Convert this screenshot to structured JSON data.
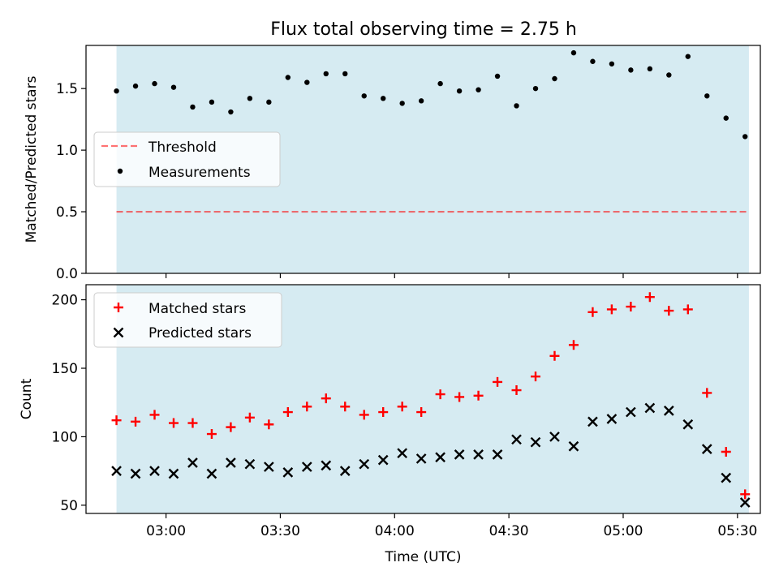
{
  "title": "Flux total observing time = 2.75 h",
  "colors": {
    "span": "#add8e6",
    "threshold": "#ff0000",
    "measurement": "#000000",
    "matched": "#ff0000",
    "predicted": "#000000"
  },
  "chart_data": [
    {
      "type": "scatter",
      "panel": "top",
      "ylabel": "Matched/Predicted stars",
      "ylim": [
        0,
        1.85
      ],
      "y_ticks": [
        "0.0",
        "0.5",
        "1.0",
        "1.5"
      ],
      "legend_placement": "center-left",
      "threshold": {
        "name": "Threshold",
        "value": 0.5,
        "style": "dashed"
      },
      "span": [
        "02:47",
        "05:33"
      ],
      "series": [
        {
          "name": "Measurements",
          "marker": "dot",
          "x": [
            "02:47",
            "02:52",
            "02:57",
            "03:02",
            "03:07",
            "03:12",
            "03:17",
            "03:22",
            "03:27",
            "03:32",
            "03:37",
            "03:42",
            "03:47",
            "03:52",
            "03:57",
            "04:02",
            "04:07",
            "04:12",
            "04:17",
            "04:22",
            "04:27",
            "04:32",
            "04:37",
            "04:42",
            "04:47",
            "04:52",
            "04:57",
            "05:02",
            "05:07",
            "05:12",
            "05:17",
            "05:22",
            "05:27",
            "05:32"
          ],
          "y": [
            1.48,
            1.52,
            1.54,
            1.51,
            1.35,
            1.39,
            1.31,
            1.42,
            1.39,
            1.59,
            1.55,
            1.62,
            1.62,
            1.44,
            1.42,
            1.38,
            1.4,
            1.54,
            1.48,
            1.49,
            1.6,
            1.36,
            1.5,
            1.58,
            1.79,
            1.72,
            1.7,
            1.65,
            1.66,
            1.61,
            1.76,
            1.44,
            1.26,
            1.11
          ]
        }
      ]
    },
    {
      "type": "scatter",
      "panel": "bottom",
      "xlabel": "Time (UTC)",
      "ylabel": "Count",
      "xlim": [
        "02:39",
        "05:36"
      ],
      "x_ticks": [
        "03:00",
        "03:30",
        "04:00",
        "04:30",
        "05:00",
        "05:30"
      ],
      "ylim": [
        44,
        211
      ],
      "y_ticks": [
        "50",
        "100",
        "150",
        "200"
      ],
      "legend_placement": "upper-left",
      "span": [
        "02:47",
        "05:33"
      ],
      "series": [
        {
          "name": "Matched stars",
          "marker": "plus",
          "x": [
            "02:47",
            "02:52",
            "02:57",
            "03:02",
            "03:07",
            "03:12",
            "03:17",
            "03:22",
            "03:27",
            "03:32",
            "03:37",
            "03:42",
            "03:47",
            "03:52",
            "03:57",
            "04:02",
            "04:07",
            "04:12",
            "04:17",
            "04:22",
            "04:27",
            "04:32",
            "04:37",
            "04:42",
            "04:47",
            "04:52",
            "04:57",
            "05:02",
            "05:07",
            "05:12",
            "05:17",
            "05:22",
            "05:27",
            "05:32"
          ],
          "y": [
            112,
            111,
            116,
            110,
            110,
            102,
            107,
            114,
            109,
            118,
            122,
            128,
            122,
            116,
            118,
            122,
            118,
            131,
            129,
            130,
            140,
            134,
            144,
            159,
            167,
            191,
            193,
            195,
            202,
            192,
            193,
            132,
            89,
            58
          ]
        },
        {
          "name": "Predicted stars",
          "marker": "x",
          "x": [
            "02:47",
            "02:52",
            "02:57",
            "03:02",
            "03:07",
            "03:12",
            "03:17",
            "03:22",
            "03:27",
            "03:32",
            "03:37",
            "03:42",
            "03:47",
            "03:52",
            "03:57",
            "04:02",
            "04:07",
            "04:12",
            "04:17",
            "04:22",
            "04:27",
            "04:32",
            "04:37",
            "04:42",
            "04:47",
            "04:52",
            "04:57",
            "05:02",
            "05:07",
            "05:12",
            "05:17",
            "05:22",
            "05:27",
            "05:32"
          ],
          "y": [
            75,
            73,
            75,
            73,
            81,
            73,
            81,
            80,
            78,
            74,
            78,
            79,
            75,
            80,
            83,
            88,
            84,
            85,
            87,
            87,
            87,
            98,
            96,
            100,
            93,
            111,
            113,
            118,
            121,
            119,
            109,
            91,
            70,
            52
          ]
        }
      ]
    }
  ]
}
